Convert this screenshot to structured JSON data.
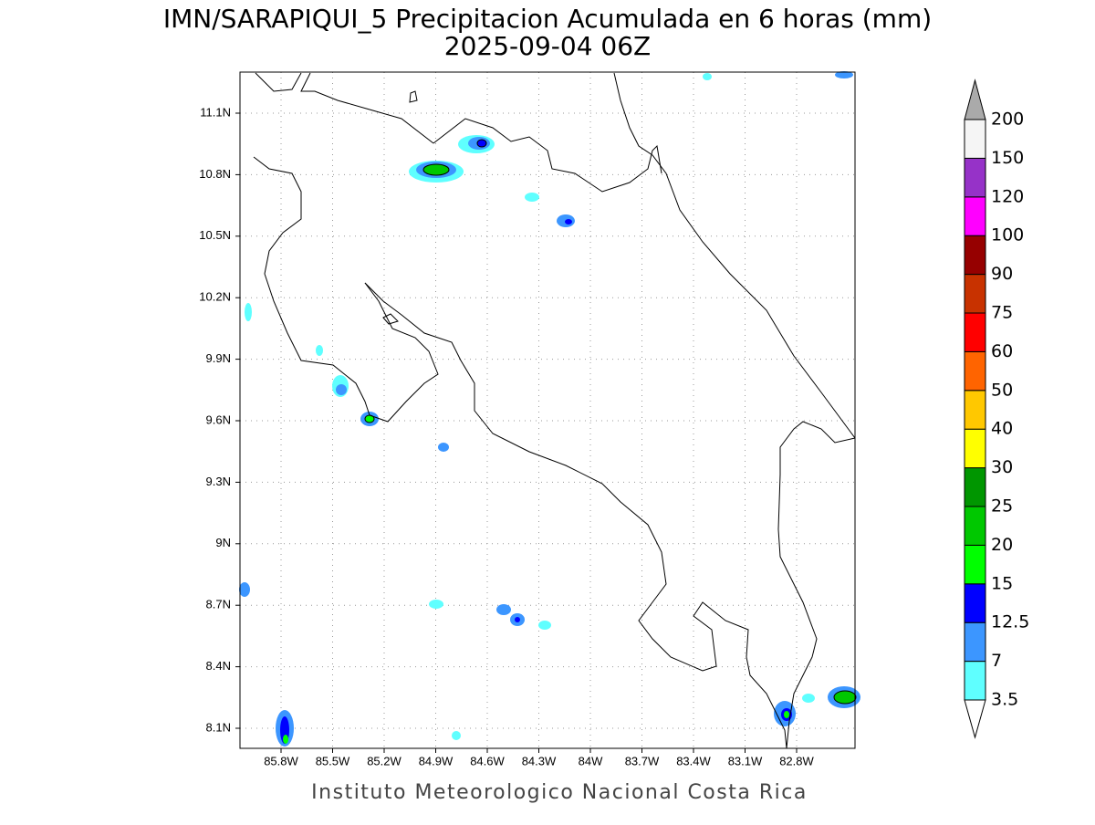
{
  "title": "IMN/SARAPIQUI_5 Precipitacion Acumulada en 6 horas (mm)",
  "subtitle": "2025-09-04 06Z",
  "map": {
    "lon_ticks": [
      "85.8W",
      "85.5W",
      "85.2W",
      "84.9W",
      "84.6W",
      "84.3W",
      "84W",
      "83.7W",
      "83.4W",
      "83.1W",
      "82.8W"
    ],
    "lat_ticks": [
      "11.1N",
      "10.8N",
      "10.5N",
      "10.2N",
      "9.9N",
      "9.6N",
      "9.3N",
      "9N",
      "8.7N",
      "8.4N",
      "8.1N"
    ]
  },
  "colorbar": {
    "levels": [
      3.5,
      7,
      12.5,
      15,
      20,
      25,
      30,
      40,
      50,
      60,
      75,
      90,
      100,
      120,
      150,
      200
    ],
    "colors": [
      "#ffffff",
      "#5fffff",
      "#3c96ff",
      "#0000ff",
      "#00ff00",
      "#00c800",
      "#009600",
      "#ffff00",
      "#ffc800",
      "#ff6400",
      "#ff0000",
      "#c83200",
      "#960000",
      "#ff00ff",
      "#9632c8",
      "#f5f5f5",
      "#aaaaaa"
    ]
  },
  "footer": "Instituto Meteorologico Nacional Costa Rica"
}
